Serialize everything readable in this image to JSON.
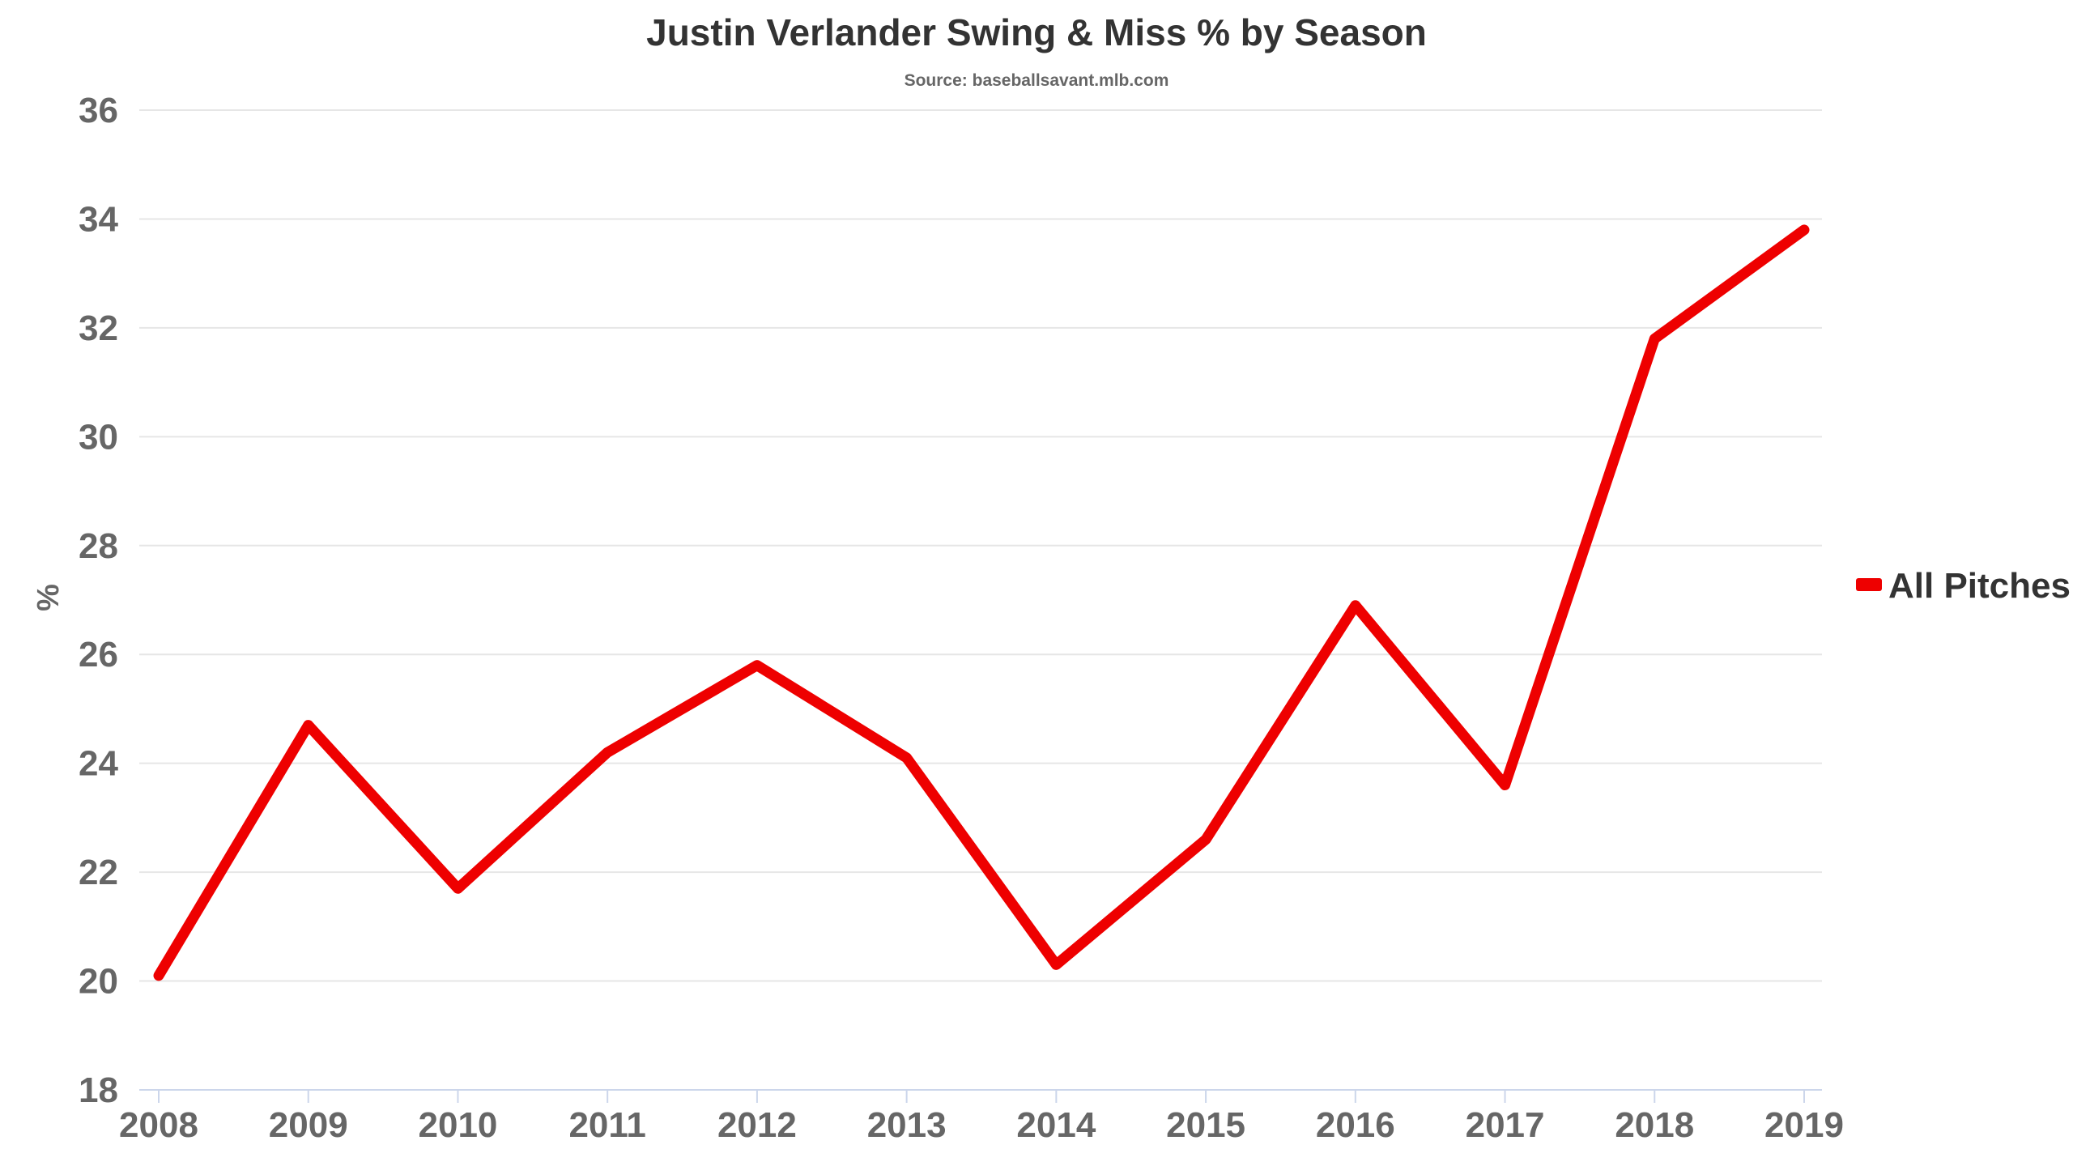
{
  "chart_data": {
    "type": "line",
    "title": "Justin Verlander Swing & Miss % by Season",
    "subtitle": "Source: baseballsavant.mlb.com",
    "xlabel": "",
    "ylabel": "%",
    "categories": [
      "2008",
      "2009",
      "2010",
      "2011",
      "2012",
      "2013",
      "2014",
      "2015",
      "2016",
      "2017",
      "2018",
      "2019"
    ],
    "series": [
      {
        "name": "All Pitches",
        "color": "#ee0000",
        "values": [
          20.1,
          24.7,
          21.7,
          24.2,
          25.8,
          24.1,
          20.3,
          22.6,
          26.9,
          23.6,
          31.8,
          33.8
        ]
      }
    ],
    "ylim": [
      18,
      36
    ],
    "yticks": [
      "18",
      "20",
      "22",
      "24",
      "26",
      "28",
      "30",
      "32",
      "34",
      "36"
    ],
    "grid": true,
    "legend_position": "right"
  }
}
